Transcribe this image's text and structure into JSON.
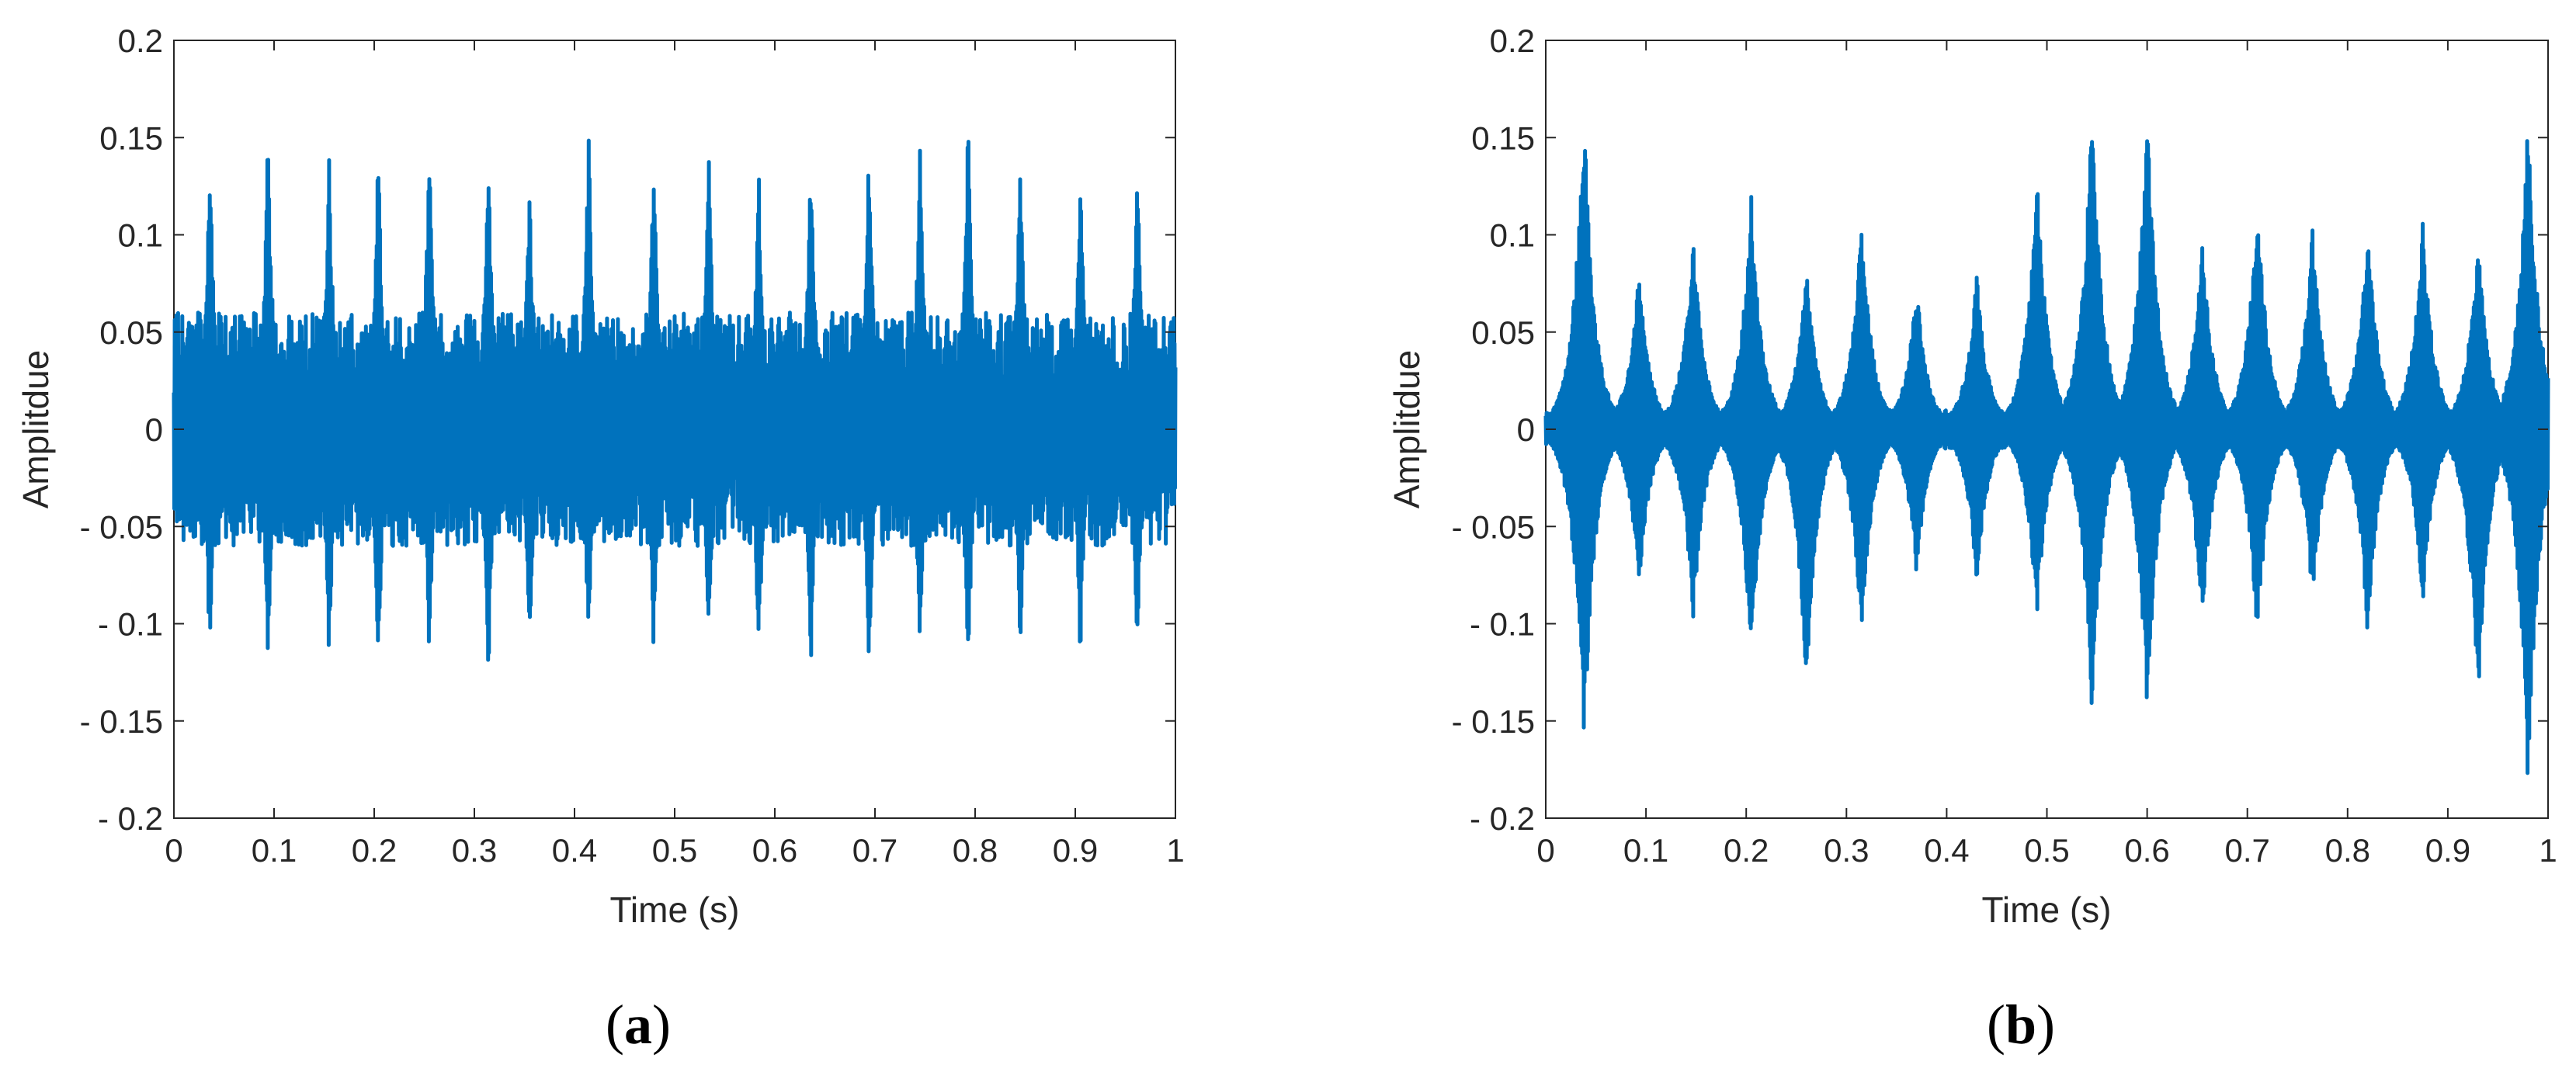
{
  "figure": {
    "panels": [
      {
        "letter": "a",
        "open": "(",
        "close": ")"
      },
      {
        "letter": "b",
        "open": "(",
        "close": ")"
      }
    ]
  },
  "chart_data": [
    {
      "type": "line",
      "title": "",
      "xlabel": "Time (s)",
      "ylabel": "Amplitdue",
      "xlim": [
        0,
        1
      ],
      "ylim": [
        -0.2,
        0.2
      ],
      "xticks": [
        "0",
        "0.1",
        "0.2",
        "0.3",
        "0.4",
        "0.5",
        "0.6",
        "0.7",
        "0.8",
        "0.9",
        "1"
      ],
      "yticks": [
        "0.2",
        "0.15",
        "0.1",
        "0.05",
        "0",
        "- 0.05",
        "- 0.1",
        "- 0.15",
        "- 0.2"
      ],
      "grid": false,
      "color": "#0072BD",
      "series": [
        {
          "impulse_times_s": [
            0.036,
            0.094,
            0.155,
            0.204,
            0.255,
            0.314,
            0.355,
            0.414,
            0.479,
            0.534,
            0.584,
            0.636,
            0.694,
            0.745,
            0.793,
            0.845,
            0.905,
            0.962
          ],
          "impulse_peak_pos": [
            0.15,
            0.159,
            0.145,
            0.149,
            0.156,
            0.148,
            0.13,
            0.158,
            0.149,
            0.147,
            0.137,
            0.15,
            0.15,
            0.151,
            0.161,
            0.149,
            0.14,
            0.15
          ],
          "impulse_peak_neg": [
            -0.127,
            -0.122,
            -0.123,
            -0.13,
            -0.12,
            -0.13,
            -0.12,
            -0.12,
            -0.12,
            -0.12,
            -0.125,
            -0.123,
            -0.128,
            -0.12,
            -0.132,
            -0.118,
            -0.12,
            -0.12
          ],
          "baseline_amplitude": 0.06
        }
      ]
    },
    {
      "type": "line",
      "title": "",
      "xlabel": "Time (s)",
      "ylabel": "Amplitdue",
      "xlim": [
        0,
        1
      ],
      "ylim": [
        -0.2,
        0.2
      ],
      "xticks": [
        "0",
        "0.1",
        "0.2",
        "0.3",
        "0.4",
        "0.5",
        "0.6",
        "0.7",
        "0.8",
        "0.9",
        "1"
      ],
      "yticks": [
        "0.2",
        "0.15",
        "0.1",
        "0.05",
        "0",
        "- 0.05",
        "- 0.1",
        "- 0.15",
        "- 0.2"
      ],
      "grid": false,
      "color": "#0072BD",
      "series": [
        {
          "impulse_times_s": [
            0.038,
            0.093,
            0.147,
            0.205,
            0.26,
            0.315,
            0.37,
            0.43,
            0.49,
            0.545,
            0.6,
            0.655,
            0.71,
            0.765,
            0.82,
            0.875,
            0.93,
            0.98
          ],
          "impulse_peak_pos": [
            0.167,
            0.082,
            0.1,
            0.12,
            0.085,
            0.11,
            0.075,
            0.08,
            0.137,
            0.168,
            0.167,
            0.1,
            0.12,
            0.105,
            0.107,
            0.108,
            0.1,
            0.162
          ],
          "impulse_peak_neg": [
            -0.167,
            -0.083,
            -0.1,
            -0.12,
            -0.135,
            -0.11,
            -0.075,
            -0.08,
            -0.1,
            -0.148,
            -0.148,
            -0.1,
            -0.11,
            -0.09,
            -0.107,
            -0.09,
            -0.143,
            -0.186
          ],
          "baseline_amplitude": 0.01
        }
      ]
    }
  ]
}
